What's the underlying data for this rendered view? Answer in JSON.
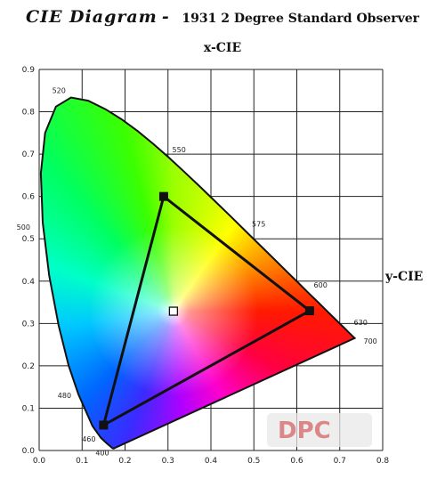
{
  "chart_data": {
    "type": "scatter",
    "title": "CIE Diagram",
    "subtitle": "1931 2 Degree Standard Observer",
    "xlabel": "x-CIE",
    "ylabel": "y-CIE",
    "xlim": [
      0.0,
      0.8
    ],
    "ylim": [
      0.0,
      0.9
    ],
    "x_ticks": [
      "0.0",
      "0.1",
      "0.2",
      "0.3",
      "0.4",
      "0.5",
      "0.6",
      "0.7",
      "0.8"
    ],
    "y_ticks": [
      "0.0",
      "0.1",
      "0.2",
      "0.3",
      "0.4",
      "0.5",
      "0.6",
      "0.7",
      "0.8",
      "0.9"
    ],
    "grid": true,
    "spectral_locus": [
      [
        0.1741,
        0.005
      ],
      [
        0.1738,
        0.0049
      ],
      [
        0.1733,
        0.0048
      ],
      [
        0.1726,
        0.0048
      ],
      [
        0.1714,
        0.0051
      ],
      [
        0.1689,
        0.0069
      ],
      [
        0.1644,
        0.0109
      ],
      [
        0.1566,
        0.0177
      ],
      [
        0.144,
        0.0297
      ],
      [
        0.1241,
        0.0578
      ],
      [
        0.0913,
        0.1327
      ],
      [
        0.0687,
        0.2007
      ],
      [
        0.0454,
        0.295
      ],
      [
        0.0235,
        0.4127
      ],
      [
        0.0082,
        0.5384
      ],
      [
        0.0039,
        0.6548
      ],
      [
        0.0139,
        0.7502
      ],
      [
        0.0389,
        0.812
      ],
      [
        0.0743,
        0.8338
      ],
      [
        0.1142,
        0.8262
      ],
      [
        0.1547,
        0.8059
      ],
      [
        0.1929,
        0.7816
      ],
      [
        0.2296,
        0.7543
      ],
      [
        0.2658,
        0.7243
      ],
      [
        0.3016,
        0.6923
      ],
      [
        0.3373,
        0.6589
      ],
      [
        0.3731,
        0.6245
      ],
      [
        0.4087,
        0.5896
      ],
      [
        0.4441,
        0.5547
      ],
      [
        0.4788,
        0.5202
      ],
      [
        0.5125,
        0.4866
      ],
      [
        0.5448,
        0.4544
      ],
      [
        0.5752,
        0.4242
      ],
      [
        0.6029,
        0.3965
      ],
      [
        0.627,
        0.3725
      ],
      [
        0.6482,
        0.3514
      ],
      [
        0.6658,
        0.334
      ],
      [
        0.6801,
        0.3197
      ],
      [
        0.6915,
        0.3083
      ],
      [
        0.7006,
        0.2993
      ],
      [
        0.7079,
        0.292
      ],
      [
        0.714,
        0.2859
      ],
      [
        0.719,
        0.2809
      ],
      [
        0.723,
        0.277
      ],
      [
        0.726,
        0.274
      ],
      [
        0.7283,
        0.2717
      ],
      [
        0.73,
        0.27
      ],
      [
        0.7347,
        0.2653
      ]
    ],
    "wavelength_labels": [
      {
        "label": "400",
        "x": 0.1733,
        "y": 0.0048
      },
      {
        "label": "460",
        "x": 0.144,
        "y": 0.0297
      },
      {
        "label": "480",
        "x": 0.0913,
        "y": 0.1327
      },
      {
        "label": "500",
        "x": 0.0082,
        "y": 0.5384
      },
      {
        "label": "520",
        "x": 0.0743,
        "y": 0.8338
      },
      {
        "label": "550",
        "x": 0.3016,
        "y": 0.6923
      },
      {
        "label": "575",
        "x": 0.4788,
        "y": 0.5202
      },
      {
        "label": "600",
        "x": 0.627,
        "y": 0.3725
      },
      {
        "label": "630",
        "x": 0.7079,
        "y": 0.292
      },
      {
        "label": "700",
        "x": 0.7347,
        "y": 0.2653
      }
    ],
    "gamut_triangle": [
      {
        "name": "red",
        "x": 0.63,
        "y": 0.33
      },
      {
        "name": "green",
        "x": 0.29,
        "y": 0.6
      },
      {
        "name": "blue",
        "x": 0.15,
        "y": 0.06
      }
    ],
    "white_point": {
      "x": 0.3127,
      "y": 0.329
    },
    "watermark_text": "DPC"
  }
}
